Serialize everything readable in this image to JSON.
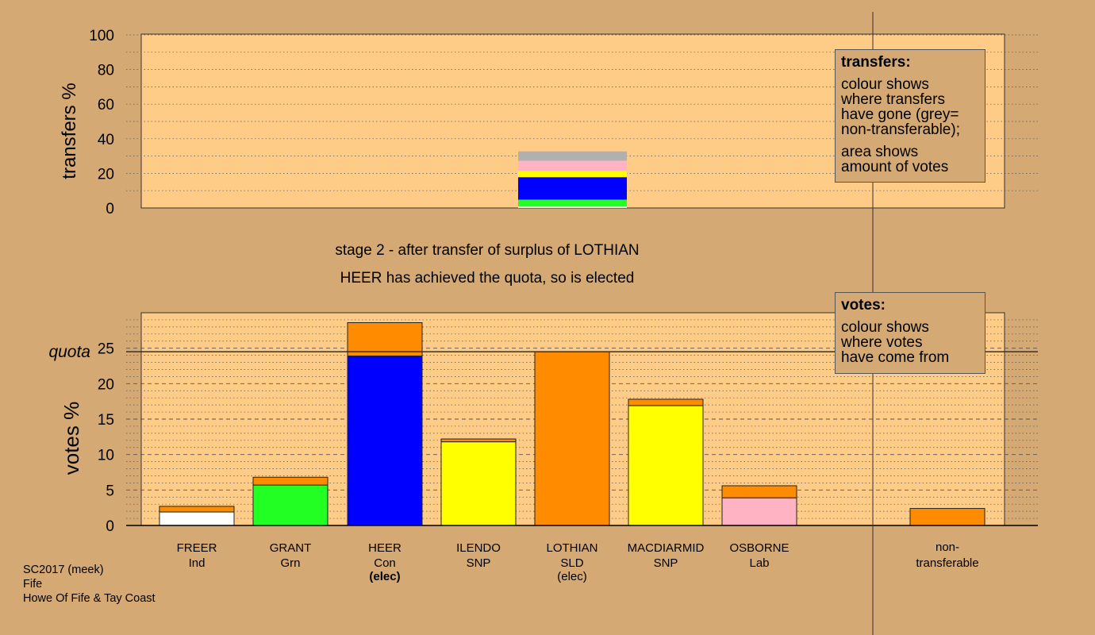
{
  "chart_data": [
    {
      "type": "bar",
      "title": "",
      "ylabel": "transfers %",
      "ylim": [
        0,
        100
      ],
      "yticks": [
        "0",
        "20",
        "40",
        "60",
        "80",
        "100"
      ],
      "grid": "dotted",
      "stacked_bar": {
        "category": "LOTHIAN",
        "segments": [
          {
            "name": "FREER",
            "value": 0.8,
            "color": "#ffffff"
          },
          {
            "name": "GRANT",
            "value": 4.0,
            "color": "#22ff22"
          },
          {
            "name": "HEER",
            "value": 13.0,
            "color": "#0000ff"
          },
          {
            "name": "ILENDO",
            "value": 1.1,
            "color": "#ffff00"
          },
          {
            "name": "MACDIARMID",
            "value": 2.5,
            "color": "#ffff00"
          },
          {
            "name": "OSBORNE",
            "value": 5.9,
            "color": "#ffb3c3"
          },
          {
            "name": "non-transferable",
            "value": 5.4,
            "color": "#b0b0b0"
          }
        ]
      }
    },
    {
      "type": "bar",
      "title": "",
      "ylabel": "votes %",
      "ylim": [
        0,
        30
      ],
      "yticks": [
        "0",
        "5",
        "10",
        "15",
        "20",
        "25"
      ],
      "quota": 24.5,
      "quota_label": "quota",
      "grid": "dashed",
      "categories": [
        "FREER",
        "GRANT",
        "HEER",
        "ILENDO",
        "LOTHIAN",
        "MACDIARMID",
        "OSBORNE",
        "non-transferable"
      ],
      "parties": [
        "Ind",
        "Grn",
        "Con",
        "SNP",
        "SLD",
        "SNP",
        "Lab",
        ""
      ],
      "notes": [
        "",
        "",
        "(elec)",
        "",
        "(elec)",
        "",
        "",
        ""
      ],
      "series": [
        {
          "values": [
            1.9,
            5.7,
            23.9,
            11.8,
            0,
            16.9,
            3.9,
            0
          ],
          "colors": [
            "#ffffff",
            "#22ff22",
            "#0000ff",
            "#ffff00",
            "#ff8c00",
            "#ffff00",
            "#ffb3c3",
            "#ff8c00"
          ]
        },
        {
          "values": [
            0.8,
            1.1,
            4.7,
            0.4,
            24.5,
            0.9,
            1.7,
            2.4
          ],
          "colors": [
            "#ff8c00",
            "#ff8c00",
            "#ff8c00",
            "#ff8c00",
            "#ff8c00",
            "#ff8c00",
            "#ff8c00",
            "#ff8c00"
          ]
        }
      ]
    }
  ],
  "stage_line1": "stage 2 - after transfer of surplus of LOTHIAN",
  "stage_line2": "HEER has achieved the quota, so is elected",
  "transfers_legend": {
    "heading": "transfers:",
    "line1": "colour shows",
    "line2": "where transfers",
    "line3": "have gone (grey=",
    "line4": "non-transferable);",
    "line5": "area shows",
    "line6": "amount of votes"
  },
  "votes_legend": {
    "heading": "votes:",
    "line1": "colour shows",
    "line2": "where votes",
    "line3": "have come from"
  },
  "footer": {
    "line1": "SC2017 (meek)",
    "line2": "Fife",
    "line3": "Howe Of Fife & Tay Coast"
  },
  "colors": {
    "background": "#d4a973",
    "plot_area": "#ffcc88",
    "transfer_color": "#ff8c00"
  }
}
